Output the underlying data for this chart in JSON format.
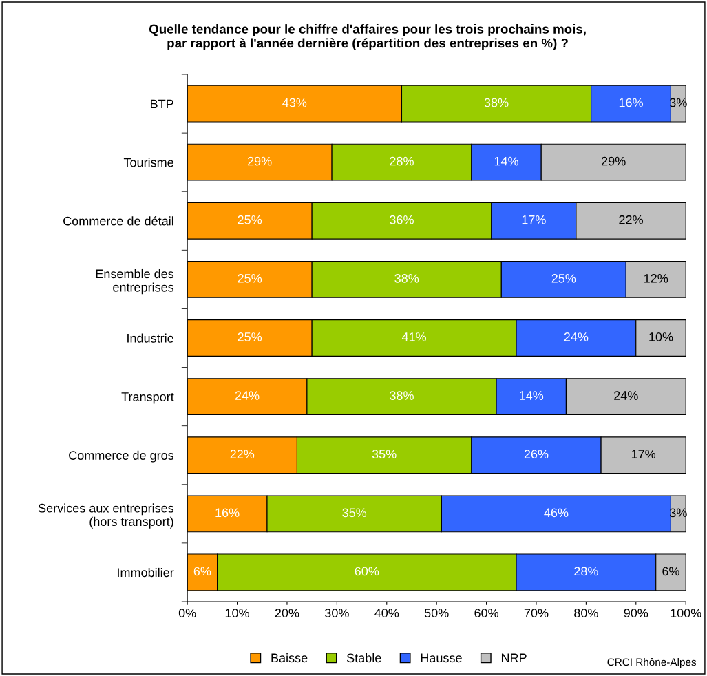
{
  "chart_data": {
    "type": "bar",
    "orientation": "horizontal",
    "stacked": true,
    "title": "Quelle tendance pour le chiffre d'affaires pour les trois prochains mois,\npar rapport à l'année dernière (répartition des entreprises en %) ?",
    "categories": [
      "BTP",
      "Tourisme",
      "Commerce de détail",
      "Ensemble des\nentreprises",
      "Industrie",
      "Transport",
      "Commerce de gros",
      "Services aux entreprises\n(hors transport)",
      "Immobilier"
    ],
    "series": [
      {
        "name": "Baisse",
        "color": "#ff9900",
        "values": [
          43,
          29,
          25,
          25,
          25,
          24,
          22,
          16,
          6
        ],
        "value_labels": [
          "43%",
          "29%",
          "25%",
          "25%",
          "25%",
          "24%",
          "22%",
          "16%",
          "6%"
        ]
      },
      {
        "name": "Stable",
        "color": "#99cc00",
        "values": [
          38,
          28,
          36,
          38,
          41,
          38,
          35,
          35,
          60
        ],
        "value_labels": [
          "38%",
          "28%",
          "36%",
          "38%",
          "41%",
          "38%",
          "35%",
          "35%",
          "60%"
        ]
      },
      {
        "name": "Hausse",
        "color": "#3366ff",
        "values": [
          16,
          14,
          17,
          25,
          24,
          14,
          26,
          46,
          28
        ],
        "value_labels": [
          "16%",
          "14%",
          "17%",
          "25%",
          "24%",
          "14%",
          "26%",
          "46%",
          "28%"
        ]
      },
      {
        "name": "NRP",
        "color": "#c0c0c0",
        "values": [
          3,
          29,
          22,
          12,
          10,
          24,
          17,
          3,
          6
        ],
        "value_labels": [
          "3%",
          "29%",
          "22%",
          "12%",
          "10%",
          "24%",
          "17%",
          "3%",
          "6%"
        ]
      }
    ],
    "xlim": [
      0,
      100
    ],
    "xticks": [
      {
        "value": 0,
        "label": "0%"
      },
      {
        "value": 10,
        "label": "10%"
      },
      {
        "value": 20,
        "label": "20%"
      },
      {
        "value": 30,
        "label": "30%"
      },
      {
        "value": 40,
        "label": "40%"
      },
      {
        "value": 50,
        "label": "50%"
      },
      {
        "value": 60,
        "label": "60%"
      },
      {
        "value": 70,
        "label": "70%"
      },
      {
        "value": 80,
        "label": "80%"
      },
      {
        "value": 90,
        "label": "90%"
      },
      {
        "value": 100,
        "label": "100%"
      }
    ],
    "grid": false,
    "legend": "bottom",
    "annotations": [
      "CRCI Rhône-Alpes"
    ]
  }
}
